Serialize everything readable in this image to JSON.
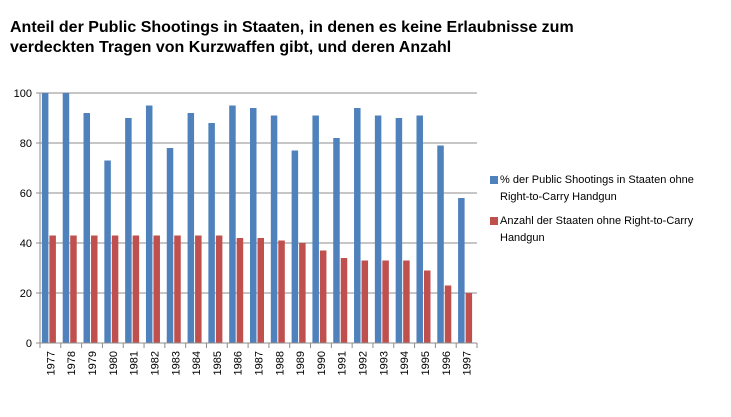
{
  "chart_data": {
    "type": "bar",
    "title": "Anteil der Public Shootings in Staaten, in denen es keine Erlaubnisse zum verdeckten Tragen von Kurzwaffen gibt, und deren Anzahl",
    "xlabel": "",
    "ylabel": "",
    "ylim": [
      0,
      100
    ],
    "yticks": [
      0,
      20,
      40,
      60,
      80,
      100
    ],
    "grid": true,
    "legend_position": "right",
    "categories": [
      "1977",
      "1978",
      "1979",
      "1980",
      "1981",
      "1982",
      "1983",
      "1984",
      "1985",
      "1986",
      "1987",
      "1988",
      "1989",
      "1990",
      "1991",
      "1992",
      "1993",
      "1994",
      "1995",
      "1996",
      "1997"
    ],
    "series": [
      {
        "name": "% der Public Shootings in Staaten ohne Right-to-Carry Handgun",
        "color": "#4f81bd",
        "values": [
          100,
          100,
          92,
          73,
          90,
          95,
          78,
          92,
          88,
          95,
          94,
          91,
          77,
          91,
          82,
          94,
          91,
          90,
          91,
          79,
          58
        ]
      },
      {
        "name": "Anzahl der Staaten  ohne Right-to-Carry Handgun",
        "color": "#c0504d",
        "values": [
          43,
          43,
          43,
          43,
          43,
          43,
          43,
          43,
          43,
          42,
          42,
          41,
          40,
          37,
          34,
          33,
          33,
          33,
          29,
          23,
          20
        ]
      }
    ]
  }
}
